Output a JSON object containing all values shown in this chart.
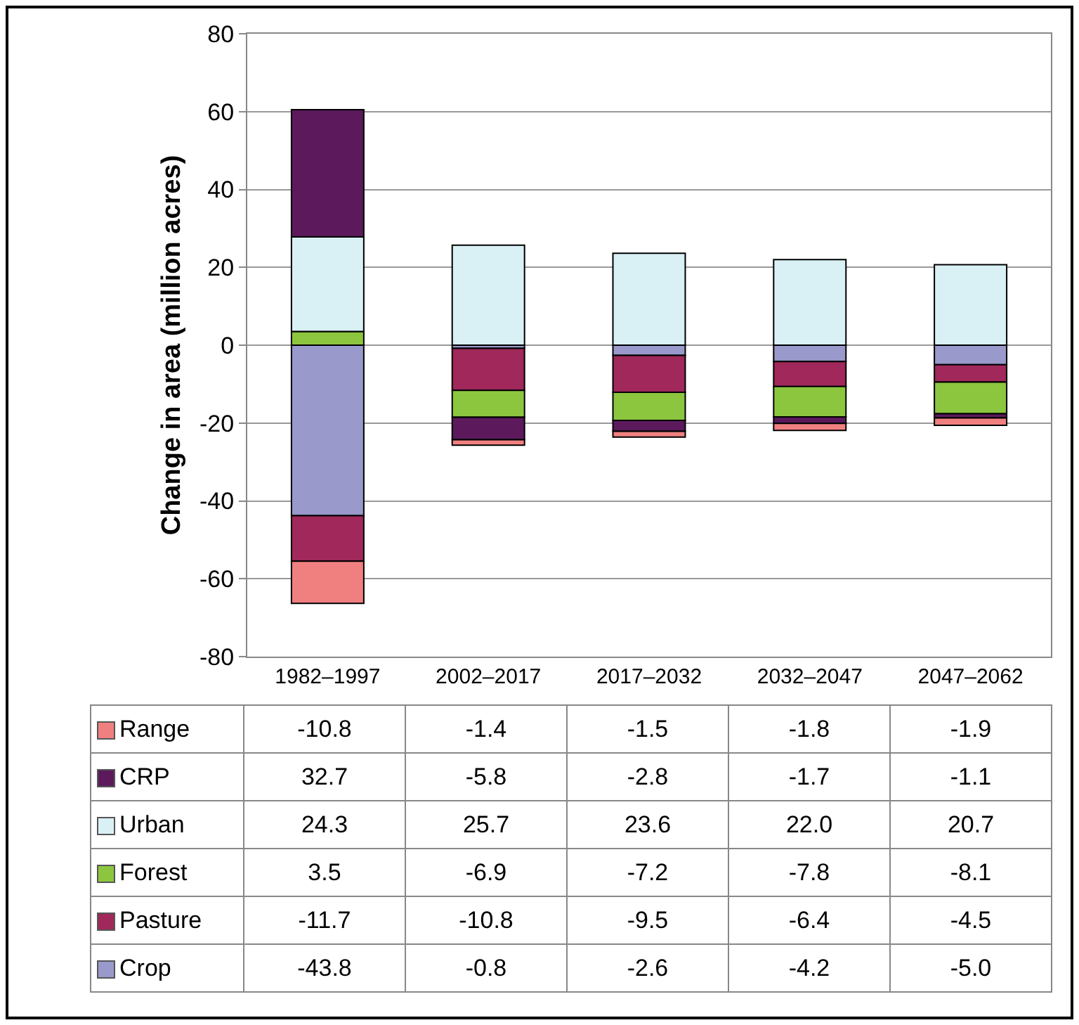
{
  "chart_data": {
    "type": "bar",
    "stacked": true,
    "ylabel": "Change in area (million acres)",
    "categories": [
      "1982–1997",
      "2002–2017",
      "2017–2032",
      "2032–2047",
      "2047–2062"
    ],
    "series": [
      {
        "name": "Crop",
        "color": "#9999cc",
        "values": [
          -43.8,
          -0.8,
          -2.6,
          -4.2,
          -5.0
        ],
        "value_labels": [
          "-43.8",
          "-0.8",
          "-2.6",
          "-4.2",
          "-5.0"
        ]
      },
      {
        "name": "Pasture",
        "color": "#a0285a",
        "values": [
          -11.7,
          -10.8,
          -9.5,
          -6.4,
          -4.5
        ],
        "value_labels": [
          "-11.7",
          "-10.8",
          "-9.5",
          "-6.4",
          "-4.5"
        ]
      },
      {
        "name": "Forest",
        "color": "#8cc63f",
        "values": [
          3.5,
          -6.9,
          -7.2,
          -7.8,
          -8.1
        ],
        "value_labels": [
          "3.5",
          "-6.9",
          "-7.2",
          "-7.8",
          "-8.1"
        ]
      },
      {
        "name": "Urban",
        "color": "#d9f0f5",
        "values": [
          24.3,
          25.7,
          23.6,
          22.0,
          20.7
        ],
        "value_labels": [
          "24.3",
          "25.7",
          "23.6",
          "22.0",
          "20.7"
        ]
      },
      {
        "name": "CRP",
        "color": "#5c1a5c",
        "values": [
          32.7,
          -5.8,
          -2.8,
          -1.7,
          -1.1
        ],
        "value_labels": [
          "32.7",
          "-5.8",
          "-2.8",
          "-1.7",
          "-1.1"
        ]
      },
      {
        "name": "Range",
        "color": "#f08080",
        "values": [
          -10.8,
          -1.4,
          -1.5,
          -1.8,
          -1.9
        ],
        "value_labels": [
          "-10.8",
          "-1.4",
          "-1.5",
          "-1.8",
          "-1.9"
        ]
      }
    ],
    "ylim": [
      -80,
      80
    ],
    "yticks": [
      -80,
      -60,
      -40,
      -20,
      0,
      20,
      40,
      60,
      80
    ],
    "grid": "y",
    "legend": "bottom left"
  }
}
